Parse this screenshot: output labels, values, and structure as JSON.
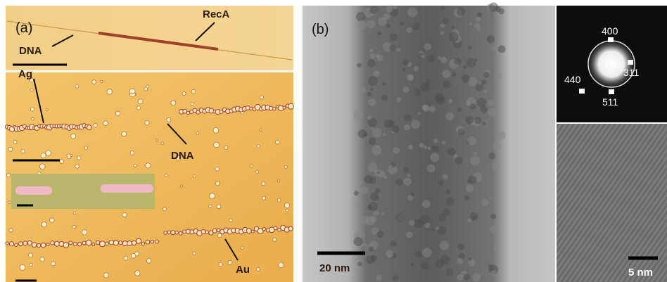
{
  "panel_a": {
    "label": "(a)",
    "annotations": [
      "RecA",
      "DNA",
      "Ag",
      "DNA",
      "Au"
    ]
  },
  "panel_b": {
    "label": "(b)",
    "scale_bar": "20 nm",
    "diffraction_indices": [
      "400",
      "311",
      "440",
      "511"
    ],
    "hrtem_scale_bar": "5 nm"
  }
}
